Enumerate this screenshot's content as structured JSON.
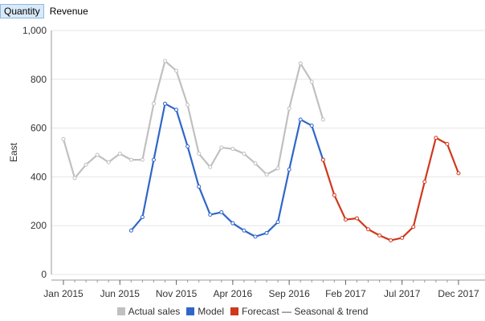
{
  "tabs": [
    {
      "label": "Quantity",
      "active": true
    },
    {
      "label": "Revenue",
      "active": false
    }
  ],
  "chart_data": {
    "type": "line",
    "ylabel": "East",
    "xlabel": "",
    "ylim": [
      0,
      1000
    ],
    "yticks": [
      0,
      200,
      400,
      600,
      800,
      1000
    ],
    "ytick_labels": [
      "0",
      "200",
      "400",
      "600",
      "800",
      "1,000"
    ],
    "xticks": [
      "2015-01",
      "2015-06",
      "2015-11",
      "2016-04",
      "2016-09",
      "2017-02",
      "2017-07",
      "2017-12"
    ],
    "xtick_labels": [
      "Jan 2015",
      "Jun 2015",
      "Nov 2015",
      "Apr 2016",
      "Sep 2016",
      "Feb 2017",
      "Jul 2017",
      "Dec 2017"
    ],
    "x_range": [
      "2015-01",
      "2017-12"
    ],
    "grid": "horizontal",
    "legend_position": "bottom",
    "series": [
      {
        "name": "Actual sales",
        "color": "#c0c0c0",
        "points": [
          [
            "2015-01",
            555
          ],
          [
            "2015-02",
            395
          ],
          [
            "2015-03",
            450
          ],
          [
            "2015-04",
            490
          ],
          [
            "2015-05",
            460
          ],
          [
            "2015-06",
            495
          ],
          [
            "2015-07",
            470
          ],
          [
            "2015-08",
            470
          ],
          [
            "2015-09",
            700
          ],
          [
            "2015-10",
            875
          ],
          [
            "2015-11",
            835
          ],
          [
            "2015-12",
            695
          ],
          [
            "2016-01",
            495
          ],
          [
            "2016-02",
            440
          ],
          [
            "2016-03",
            520
          ],
          [
            "2016-04",
            515
          ],
          [
            "2016-05",
            495
          ],
          [
            "2016-06",
            455
          ],
          [
            "2016-07",
            410
          ],
          [
            "2016-08",
            435
          ],
          [
            "2016-09",
            680
          ],
          [
            "2016-10",
            865
          ],
          [
            "2016-11",
            790
          ],
          [
            "2016-12",
            635
          ]
        ]
      },
      {
        "name": "Model",
        "color": "#2f66c8",
        "points": [
          [
            "2015-07",
            180
          ],
          [
            "2015-08",
            235
          ],
          [
            "2015-09",
            470
          ],
          [
            "2015-10",
            700
          ],
          [
            "2015-11",
            675
          ],
          [
            "2015-12",
            525
          ],
          [
            "2016-01",
            360
          ],
          [
            "2016-02",
            245
          ],
          [
            "2016-03",
            255
          ],
          [
            "2016-04",
            210
          ],
          [
            "2016-05",
            180
          ],
          [
            "2016-06",
            155
          ],
          [
            "2016-07",
            170
          ],
          [
            "2016-08",
            215
          ],
          [
            "2016-09",
            430
          ],
          [
            "2016-10",
            635
          ],
          [
            "2016-11",
            610
          ],
          [
            "2016-12",
            470
          ]
        ]
      },
      {
        "name": "Forecast — Seasonal & trend",
        "color": "#d0381c",
        "points": [
          [
            "2016-12",
            470
          ],
          [
            "2017-01",
            325
          ],
          [
            "2017-02",
            225
          ],
          [
            "2017-03",
            230
          ],
          [
            "2017-04",
            185
          ],
          [
            "2017-05",
            160
          ],
          [
            "2017-06",
            140
          ],
          [
            "2017-07",
            150
          ],
          [
            "2017-08",
            195
          ],
          [
            "2017-09",
            380
          ],
          [
            "2017-10",
            560
          ],
          [
            "2017-11",
            535
          ],
          [
            "2017-12",
            415
          ]
        ]
      }
    ]
  }
}
